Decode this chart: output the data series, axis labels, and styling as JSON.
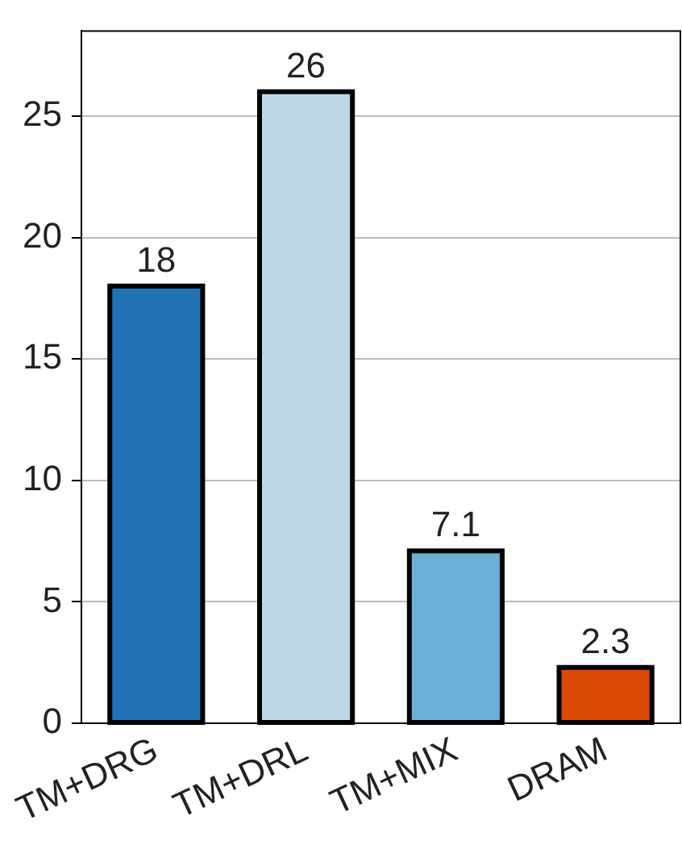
{
  "chart_data": {
    "type": "bar",
    "categories": [
      "TM+DRG",
      "TM+DRL",
      "TM+MIX",
      "DRAM"
    ],
    "values": [
      18,
      26,
      7.1,
      2.3
    ],
    "colors": [
      "#2171b5",
      "#bdd7e7",
      "#6baed6",
      "#d94801"
    ],
    "ylim": [
      0,
      28.5
    ],
    "yticks": [
      0,
      5,
      10,
      15,
      20,
      25
    ],
    "grid": "y",
    "data_labels": true,
    "legend": false
  }
}
